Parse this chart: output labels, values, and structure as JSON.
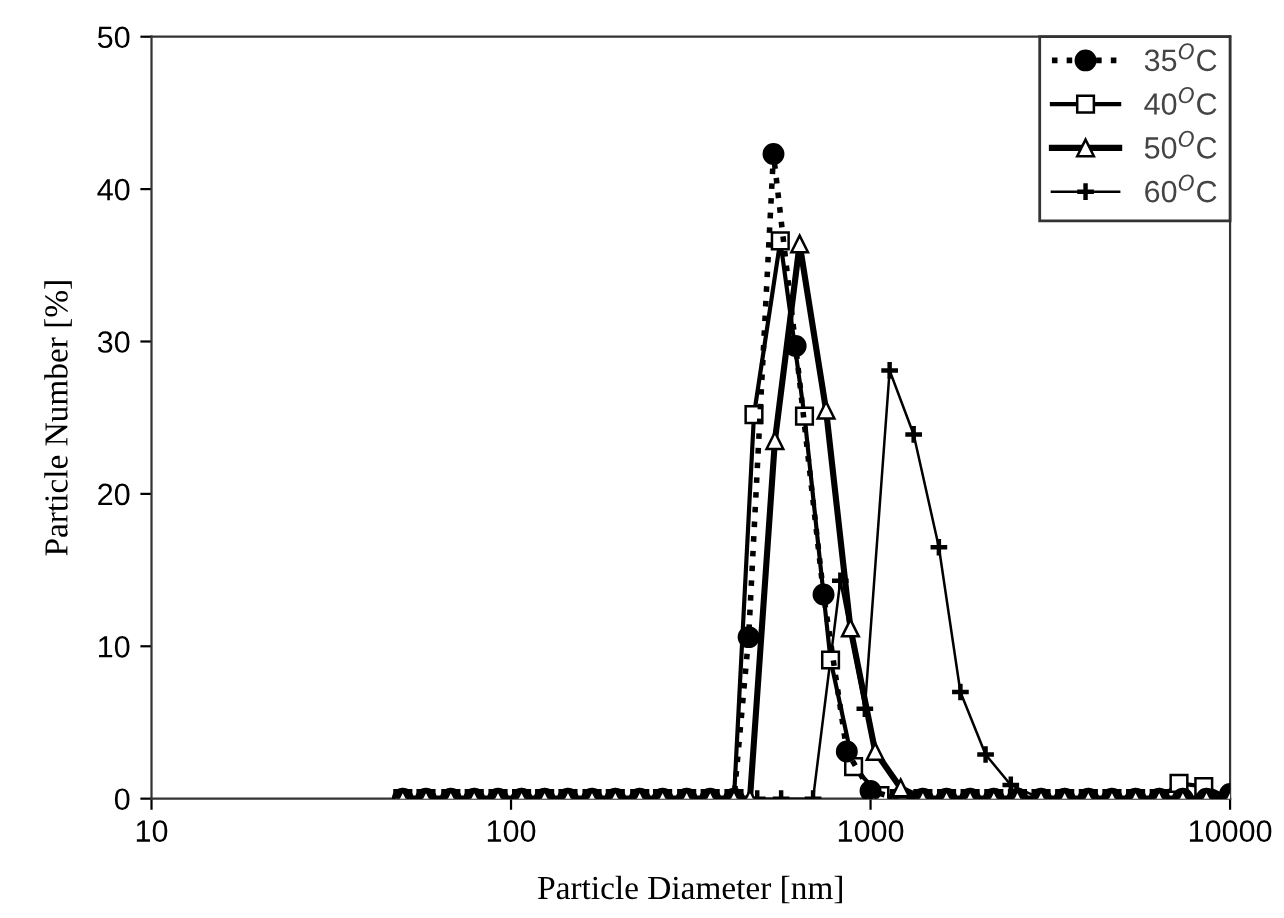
{
  "chart_data": {
    "type": "line",
    "xlabel": "Particle Diameter [nm]",
    "ylabel": "Particle Number [%]",
    "log": "x",
    "xlim": [
      10,
      10000
    ],
    "xticks": [
      10,
      100,
      1000,
      10000
    ],
    "ylim": [
      0,
      50
    ],
    "yticks": [
      0,
      10,
      20,
      30,
      40,
      50
    ],
    "grid": false,
    "legend": "top right",
    "series": [
      {
        "name": "35$^{O}$C",
        "color": "#000000",
        "marker": "circle",
        "line_style": "dotted",
        "x": [
          50,
          58,
          68,
          79,
          92,
          107,
          124,
          144,
          168,
          195,
          228,
          264,
          308,
          358,
          417,
          458,
          537,
          619,
          740,
          859,
          1000,
          1202,
          1398,
          1627,
          1892,
          2202,
          2562,
          2980,
          3467,
          4034,
          4693,
          5460,
          6352,
          7390,
          8598,
          10000
        ],
        "values": [
          0,
          0,
          0,
          0,
          0,
          0,
          0,
          0,
          0,
          0,
          0,
          0,
          0,
          0,
          0,
          10.6,
          42.3,
          29.7,
          13.4,
          3.1,
          0.5,
          0,
          0,
          0,
          0,
          0,
          0,
          0,
          0,
          0,
          0,
          0,
          0,
          0,
          0,
          0.3
        ]
      },
      {
        "name": "40$^{O}$C",
        "color": "#000000",
        "marker": "square",
        "line_style": "solid",
        "x": [
          50,
          58,
          68,
          79,
          92,
          107,
          124,
          144,
          168,
          195,
          228,
          264,
          308,
          358,
          417,
          474,
          561,
          655,
          774,
          897,
          1062,
          1202,
          1398,
          1627,
          1892,
          2202,
          2562,
          2980,
          3467,
          4034,
          4693,
          5460,
          6352,
          7210,
          8450,
          10000
        ],
        "values": [
          0,
          0,
          0,
          0,
          0,
          0,
          0,
          0,
          0,
          0,
          0,
          0,
          0,
          0,
          0,
          25.2,
          36.6,
          25.1,
          9.1,
          2.1,
          0.2,
          0,
          0,
          0,
          0,
          0,
          0,
          0,
          0,
          0,
          0,
          0,
          0,
          1.0,
          0.8,
          0
        ]
      },
      {
        "name": "50$^{O}$C",
        "color": "#000000",
        "marker": "triangle",
        "line_style": "solid",
        "x": [
          50,
          58,
          68,
          79,
          92,
          107,
          124,
          144,
          168,
          195,
          228,
          264,
          308,
          358,
          417,
          462,
          542,
          635,
          752,
          879,
          1030,
          1213,
          1398,
          1627,
          1892,
          2202,
          2562,
          2980,
          3467,
          4034,
          4693,
          5460,
          6352,
          7390,
          8598,
          10000
        ],
        "values": [
          0,
          0,
          0,
          0,
          0,
          0,
          0,
          0,
          0,
          0,
          0,
          0,
          0,
          0,
          0,
          0,
          23.5,
          36.4,
          25.5,
          11.2,
          3.1,
          0.7,
          0,
          0,
          0,
          0,
          0,
          0,
          0,
          0,
          0,
          0,
          0,
          0,
          0,
          0
        ]
      },
      {
        "name": "60$^{O}$C",
        "color": "#000000",
        "marker": "cross",
        "line_style": "solid",
        "x": [
          50,
          58,
          68,
          79,
          92,
          107,
          124,
          144,
          168,
          195,
          228,
          264,
          308,
          358,
          417,
          484,
          564,
          692,
          824,
          964,
          1130,
          1318,
          1549,
          1778,
          2089,
          2455,
          2980,
          3467,
          4034,
          4693,
          5460,
          6352,
          7390,
          8598,
          10000
        ],
        "values": [
          0,
          0,
          0,
          0,
          0,
          0,
          0,
          0,
          0,
          0,
          0,
          0,
          0,
          0,
          0,
          0,
          0,
          0,
          14.3,
          5.9,
          28.1,
          23.9,
          16.5,
          7.0,
          2.9,
          0.9,
          0,
          0,
          0,
          0,
          0,
          0,
          0,
          0,
          0
        ]
      }
    ]
  }
}
